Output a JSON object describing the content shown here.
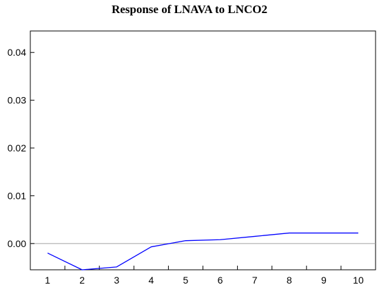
{
  "chart_data": {
    "type": "line",
    "title": "Response of LNAVA to LNCO2",
    "xlabel": "",
    "ylabel": "",
    "x": [
      1,
      2,
      3,
      4,
      5,
      6,
      7,
      8,
      9,
      10
    ],
    "series": [
      {
        "values": [
          -0.002,
          -0.0055,
          -0.0049,
          -0.0007,
          0.0006,
          0.0008,
          0.0015,
          0.0022,
          0.0022,
          0.0022
        ]
      }
    ],
    "x_tick_labels": [
      "1",
      "2",
      "3",
      "4",
      "5",
      "6",
      "7",
      "8",
      "9",
      "10"
    ],
    "y_ticks": [
      0.0,
      0.01,
      0.02,
      0.03,
      0.04
    ],
    "y_tick_labels": [
      "0.00",
      "0.01",
      "0.02",
      "0.03",
      "0.04"
    ],
    "xlim": [
      0.5,
      10.5
    ],
    "ylim": [
      -0.0055,
      0.0445
    ],
    "grid": false,
    "zero_line": true,
    "colors": {
      "series": "#0000ff",
      "zero_line": "#a0a0a0",
      "axes": "#000000"
    }
  }
}
